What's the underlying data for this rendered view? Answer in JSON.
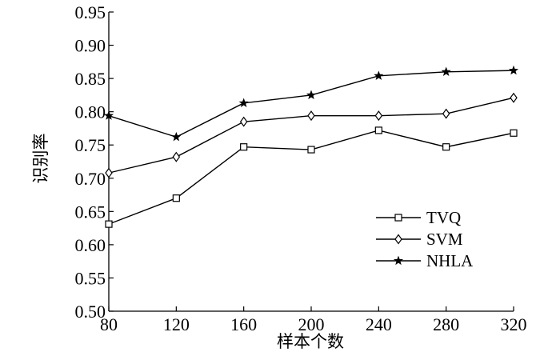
{
  "chart_data": {
    "type": "line",
    "title": "",
    "xlabel": "样本个数",
    "ylabel": "识别率",
    "x": [
      80,
      120,
      160,
      200,
      240,
      280,
      320
    ],
    "xticks": [
      "80",
      "120",
      "160",
      "200",
      "240",
      "280",
      "320"
    ],
    "yticks": [
      "0.50",
      "0.55",
      "0.60",
      "0.65",
      "0.70",
      "0.75",
      "0.80",
      "0.85",
      "0.90",
      "0.95"
    ],
    "xlim": [
      80,
      320
    ],
    "ylim": [
      0.5,
      0.95
    ],
    "grid": false,
    "legend_position": "lower-right",
    "series": [
      {
        "name": "TVQ",
        "marker": "square",
        "values": [
          0.631,
          0.67,
          0.747,
          0.743,
          0.772,
          0.747,
          0.768
        ]
      },
      {
        "name": "SVM",
        "marker": "diamond",
        "values": [
          0.708,
          0.732,
          0.785,
          0.794,
          0.794,
          0.797,
          0.821
        ]
      },
      {
        "name": "NHLA",
        "marker": "star",
        "values": [
          0.794,
          0.762,
          0.813,
          0.825,
          0.854,
          0.86,
          0.862
        ]
      }
    ],
    "colors": {
      "line": "#000000",
      "background": "#ffffff"
    }
  }
}
